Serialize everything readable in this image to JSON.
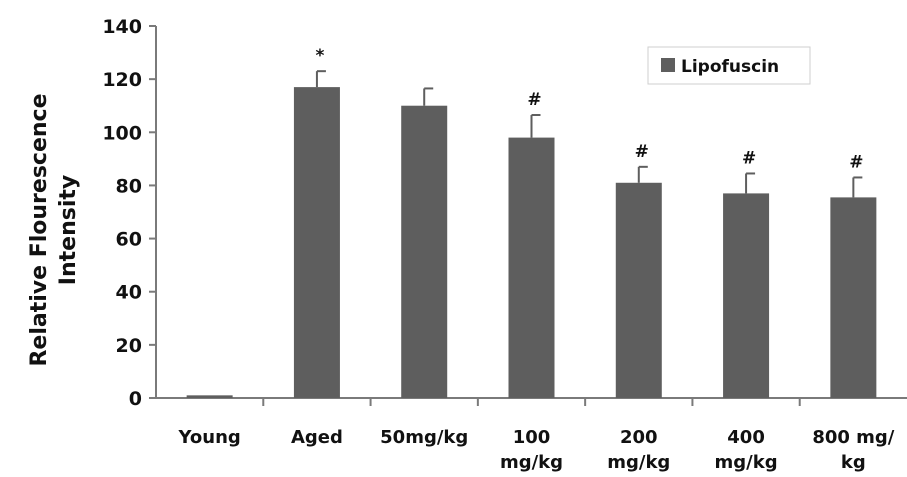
{
  "chart_data": {
    "type": "bar",
    "categories": [
      [
        "Young"
      ],
      [
        "Aged"
      ],
      [
        "50mg/kg"
      ],
      [
        "100",
        "mg/kg"
      ],
      [
        "200",
        "mg/kg"
      ],
      [
        "400",
        "mg/kg"
      ],
      [
        "800 mg/",
        "kg"
      ]
    ],
    "series": [
      {
        "name": "Lipofuscin",
        "values": [
          1,
          117,
          110,
          98,
          81,
          77,
          75.5
        ],
        "errors": [
          0,
          6,
          6.5,
          8.5,
          6,
          7.5,
          7.5
        ],
        "annotations": [
          "",
          "*",
          "",
          "#",
          "#",
          "#",
          "#"
        ]
      }
    ],
    "ylabel": [
      "Relative Flourescence",
      "Intensity"
    ],
    "ylim": [
      0,
      140
    ],
    "yticks": [
      0,
      20,
      40,
      60,
      80,
      100,
      120,
      140
    ],
    "grid": false,
    "legend_position": "top-right",
    "colors": {
      "bar": "#5e5e5e",
      "axis": "#7a7a7a",
      "text": "#111111"
    }
  }
}
